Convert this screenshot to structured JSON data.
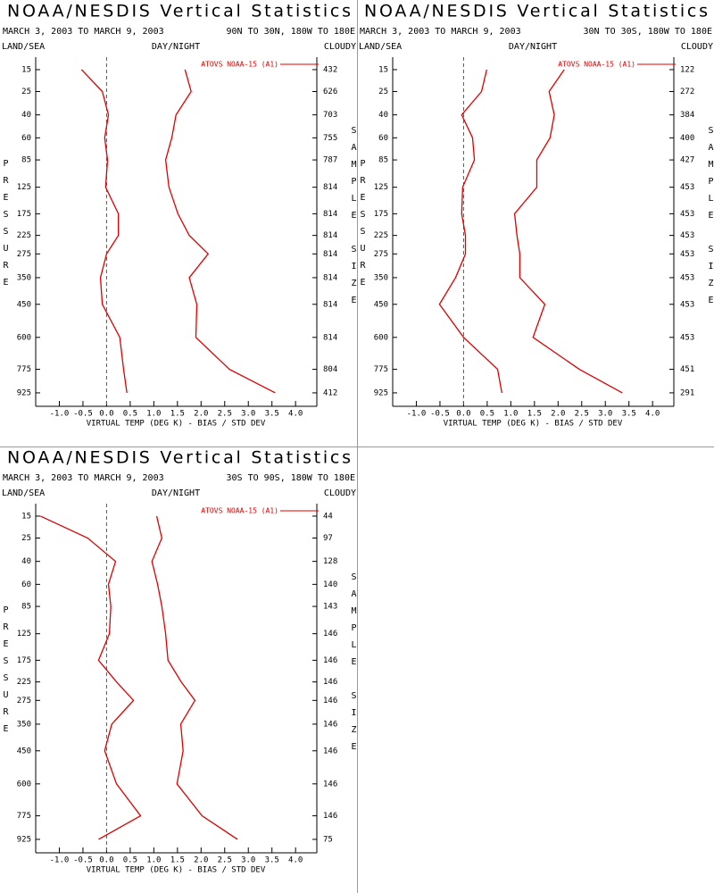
{
  "chart_data": [
    {
      "type": "profile",
      "title": "NOAA/NESDIS Vertical Statistics",
      "subtitle": "MARCH 3, 2003 TO MARCH 9, 2003",
      "region": "90N TO 30N, 180W TO 180E",
      "land_sea": "LAND/SEA",
      "day_night": "DAY/NIGHT",
      "cloudy": "CLOUDY",
      "ylabel": "PRESSURE",
      "y2label": "SAMPLE SIZE",
      "xlabel": "VIRTUAL TEMP (DEG K) - BIAS / STD DEV",
      "legend": "top-right",
      "y_power": 0.3,
      "ylim": [
        10,
        1000
      ],
      "xlim": [
        -1.5,
        4.45
      ],
      "ref_line": 0,
      "xticks": [
        {
          "value": -1.0,
          "label": "-1.0"
        },
        -0.5,
        {
          "value": 0.0,
          "label": "0.0"
        },
        0.5,
        {
          "value": 1.0,
          "label": "1.0"
        },
        1.5,
        {
          "value": 2.0,
          "label": "2.0"
        },
        2.5,
        {
          "value": 3.0,
          "label": "3.0"
        },
        3.5,
        {
          "value": 4.0,
          "label": "4.0"
        }
      ],
      "y": [
        15,
        25,
        40,
        60,
        85,
        125,
        175,
        225,
        275,
        350,
        450,
        600,
        775,
        925
      ],
      "sample_size": [
        432,
        626,
        703,
        755,
        787,
        814,
        814,
        814,
        814,
        814,
        814,
        814,
        804,
        412
      ],
      "series": [
        {
          "name": "ATOVS NOAA-15 (A1)",
          "color": "#e00000",
          "values": [
            -0.53,
            -0.09,
            0.04,
            -0.04,
            0.02,
            -0.02,
            0.25,
            0.25,
            0.0,
            -0.13,
            -0.09,
            0.28,
            0.36,
            0.43
          ]
        },
        {
          "color": "#e00000",
          "values": [
            1.66,
            1.79,
            1.47,
            1.38,
            1.25,
            1.32,
            1.51,
            1.75,
            2.15,
            1.75,
            1.91,
            1.89,
            2.6,
            3.57
          ]
        }
      ]
    },
    {
      "type": "profile",
      "title": "NOAA/NESDIS Vertical Statistics",
      "subtitle": "MARCH 3, 2003 TO MARCH 9, 2003",
      "region": "30N TO 30S, 180W TO 180E",
      "land_sea": "LAND/SEA",
      "day_night": "DAY/NIGHT",
      "cloudy": "CLOUDY",
      "ylabel": "PRESSURE",
      "y2label": "SAMPLE SIZE",
      "xlabel": "VIRTUAL TEMP (DEG K) - BIAS / STD DEV",
      "legend": "top-right",
      "y_power": 0.3,
      "ylim": [
        10,
        1000
      ],
      "xlim": [
        -1.5,
        4.45
      ],
      "ref_line": 0,
      "xticks": [
        {
          "value": -1.0,
          "label": "-1.0"
        },
        -0.5,
        {
          "value": 0.0,
          "label": "0.0"
        },
        0.5,
        {
          "value": 1.0,
          "label": "1.0"
        },
        1.5,
        {
          "value": 2.0,
          "label": "2.0"
        },
        2.5,
        {
          "value": 3.0,
          "label": "3.0"
        },
        3.5,
        {
          "value": 4.0,
          "label": "4.0"
        }
      ],
      "y": [
        15,
        25,
        40,
        60,
        85,
        125,
        175,
        225,
        275,
        350,
        450,
        600,
        775,
        925
      ],
      "sample_size": [
        122,
        272,
        384,
        400,
        427,
        453,
        453,
        453,
        453,
        453,
        453,
        453,
        451,
        291
      ],
      "series": [
        {
          "name": "ATOVS NOAA-15 (A1)",
          "color": "#e00000",
          "values": [
            0.49,
            0.38,
            -0.04,
            0.19,
            0.23,
            -0.02,
            -0.04,
            0.04,
            0.04,
            -0.17,
            -0.51,
            0.0,
            0.72,
            0.81
          ]
        },
        {
          "color": "#e00000",
          "values": [
            2.13,
            1.81,
            1.92,
            1.83,
            1.55,
            1.55,
            1.08,
            1.13,
            1.19,
            1.19,
            1.72,
            1.47,
            2.45,
            3.36
          ]
        }
      ]
    },
    {
      "type": "profile",
      "title": "NOAA/NESDIS Vertical Statistics",
      "subtitle": "MARCH 3, 2003 TO MARCH 9, 2003",
      "region": "30S TO 90S, 180W TO 180E",
      "land_sea": "LAND/SEA",
      "day_night": "DAY/NIGHT",
      "cloudy": "CLOUDY",
      "ylabel": "PRESSURE",
      "y2label": "SAMPLE SIZE",
      "xlabel": "VIRTUAL TEMP (DEG K) - BIAS / STD DEV",
      "legend": "top-right",
      "y_power": 0.3,
      "ylim": [
        10,
        1000
      ],
      "xlim": [
        -1.5,
        4.45
      ],
      "ref_line": 0,
      "xticks": [
        {
          "value": -1.0,
          "label": "-1.0"
        },
        -0.5,
        {
          "value": 0.0,
          "label": "0.0"
        },
        0.5,
        {
          "value": 1.0,
          "label": "1.0"
        },
        1.5,
        {
          "value": 2.0,
          "label": "2.0"
        },
        2.5,
        {
          "value": 3.0,
          "label": "3.0"
        },
        3.5,
        {
          "value": 4.0,
          "label": "4.0"
        }
      ],
      "y": [
        15,
        25,
        40,
        60,
        85,
        125,
        175,
        225,
        275,
        350,
        450,
        600,
        775,
        925
      ],
      "sample_size": [
        44,
        97,
        128,
        140,
        143,
        146,
        146,
        146,
        146,
        146,
        146,
        146,
        146,
        75
      ],
      "series": [
        {
          "name": "ATOVS NOAA-15 (A1)",
          "color": "#e00000",
          "values": [
            -1.4,
            -0.4,
            0.19,
            0.04,
            0.09,
            0.06,
            -0.17,
            0.21,
            0.57,
            0.11,
            -0.04,
            0.21,
            0.72,
            -0.17
          ]
        },
        {
          "color": "#e00000",
          "values": [
            1.06,
            1.17,
            0.96,
            1.08,
            1.17,
            1.25,
            1.3,
            1.58,
            1.87,
            1.57,
            1.62,
            1.49,
            2.02,
            2.77
          ]
        }
      ]
    }
  ]
}
